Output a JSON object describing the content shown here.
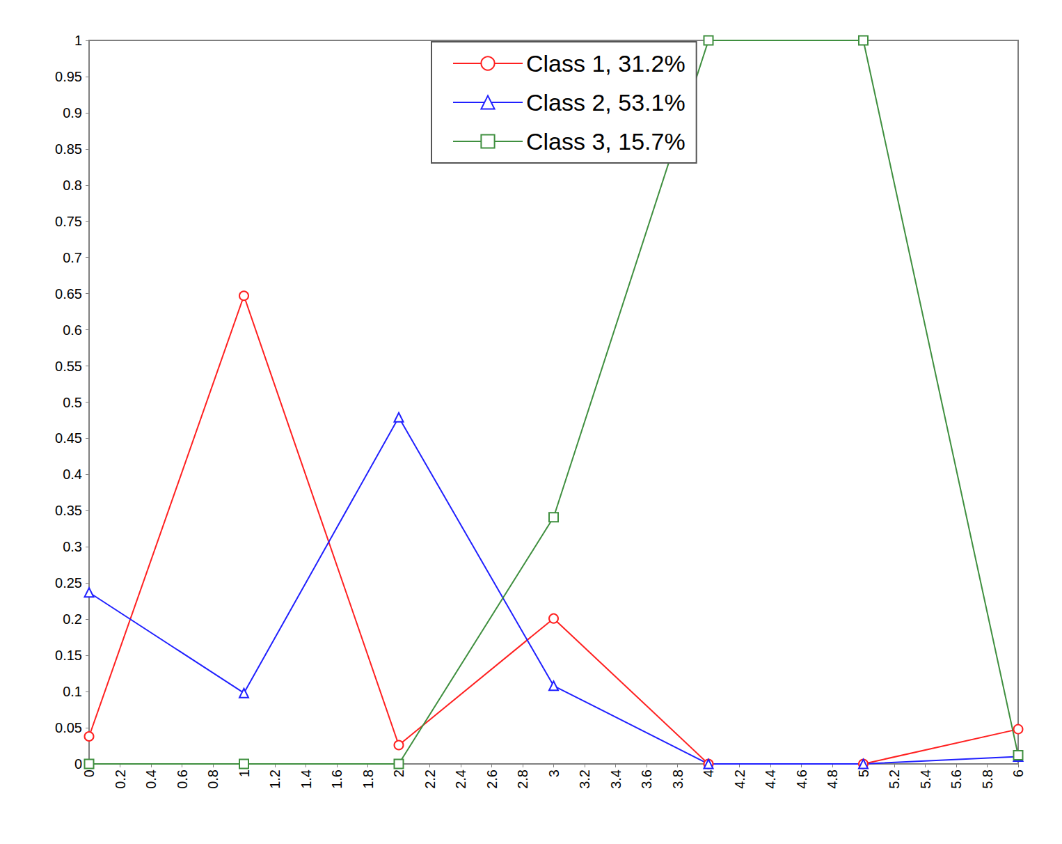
{
  "chart_data": {
    "type": "line",
    "x": [
      0,
      1,
      2,
      3,
      4,
      5,
      6
    ],
    "series": [
      {
        "name": "Class 1, 31.2%",
        "color": "#ff2020",
        "marker": "circle",
        "values": [
          0.038,
          0.647,
          0.026,
          0.201,
          0.0,
          0.0,
          0.048
        ]
      },
      {
        "name": "Class 2, 53.1%",
        "color": "#2020ff",
        "marker": "triangle",
        "values": [
          0.237,
          0.098,
          0.479,
          0.108,
          0.0,
          0.0,
          0.01
        ]
      },
      {
        "name": "Class 3, 15.7%",
        "color": "#3f8f3f",
        "marker": "square",
        "values": [
          0.0,
          0.0,
          0.0,
          0.341,
          1.0,
          1.0,
          0.012
        ]
      }
    ],
    "xlim": [
      0,
      6
    ],
    "xticks": [
      0,
      0.2,
      0.4,
      0.6,
      0.8,
      1,
      1.2,
      1.4,
      1.6,
      1.8,
      2,
      2.2,
      2.4,
      2.6,
      2.8,
      3,
      3.2,
      3.4,
      3.6,
      3.8,
      4,
      4.2,
      4.4,
      4.6,
      4.8,
      5,
      5.2,
      5.4,
      5.6,
      5.8,
      6
    ],
    "ylim": [
      0,
      1
    ],
    "yticks": [
      0,
      0.05,
      0.1,
      0.15,
      0.2,
      0.25,
      0.3,
      0.35,
      0.4,
      0.45,
      0.5,
      0.55,
      0.6,
      0.65,
      0.7,
      0.75,
      0.8,
      0.85,
      0.9,
      0.95,
      1
    ],
    "grid": false,
    "legend": "top"
  }
}
